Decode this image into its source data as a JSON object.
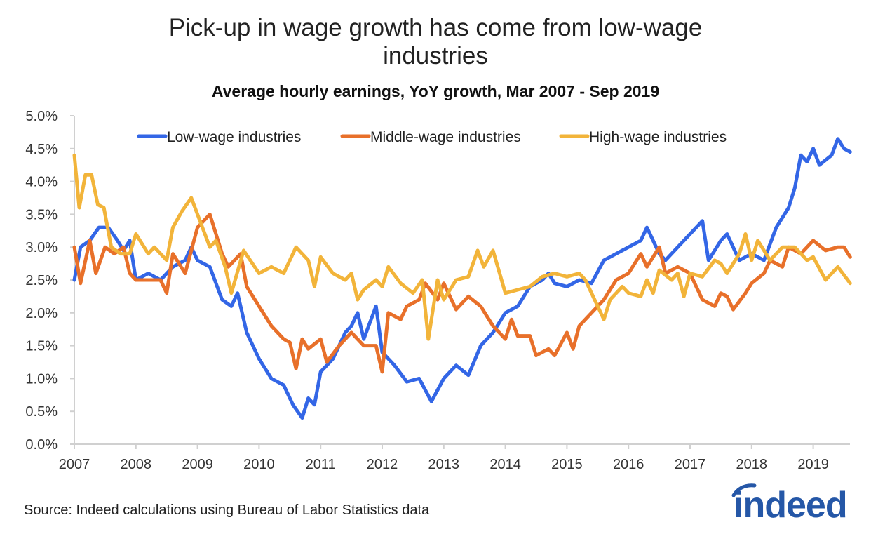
{
  "chart_data": {
    "type": "line",
    "title": "Pick-up in wage growth has come from low-wage industries",
    "title_lines": [
      "Pick-up in wage growth has come from low-wage",
      "industries"
    ],
    "subtitle": "Average hourly earnings, YoY growth, Mar 2007 - Sep 2019",
    "xlabel": "",
    "ylabel": "",
    "xlim": [
      2007,
      2019.67
    ],
    "ylim": [
      0,
      5
    ],
    "x_ticks": [
      "2007",
      "2008",
      "2009",
      "2010",
      "2011",
      "2012",
      "2013",
      "2014",
      "2015",
      "2016",
      "2017",
      "2018",
      "2019"
    ],
    "y_ticks": [
      "0.0%",
      "0.5%",
      "1.0%",
      "1.5%",
      "2.0%",
      "2.5%",
      "3.0%",
      "3.5%",
      "4.0%",
      "4.5%",
      "5.0%"
    ],
    "legend_placement": "top",
    "grid": false,
    "series": [
      {
        "name": "Low-wage industries",
        "color": "#3366e6",
        "x": [
          2007.0,
          2007.1,
          2007.25,
          2007.4,
          2007.55,
          2007.7,
          2007.8,
          2007.9,
          2008.0,
          2008.2,
          2008.4,
          2008.6,
          2008.8,
          2008.9,
          2009.0,
          2009.2,
          2009.4,
          2009.55,
          2009.65,
          2009.8,
          2010.0,
          2010.2,
          2010.4,
          2010.55,
          2010.7,
          2010.8,
          2010.9,
          2011.0,
          2011.2,
          2011.4,
          2011.5,
          2011.6,
          2011.7,
          2011.9,
          2012.0,
          2012.2,
          2012.4,
          2012.6,
          2012.8,
          2013.0,
          2013.2,
          2013.4,
          2013.6,
          2013.8,
          2014.0,
          2014.2,
          2014.4,
          2014.6,
          2014.7,
          2014.8,
          2015.0,
          2015.2,
          2015.4,
          2015.6,
          2015.8,
          2016.0,
          2016.2,
          2016.3,
          2016.5,
          2016.6,
          2016.8,
          2017.0,
          2017.2,
          2017.3,
          2017.5,
          2017.6,
          2017.8,
          2018.0,
          2018.2,
          2018.4,
          2018.6,
          2018.7,
          2018.8,
          2018.9,
          2019.0,
          2019.1,
          2019.3,
          2019.4,
          2019.5,
          2019.6
        ],
        "values": [
          2.5,
          3.0,
          3.1,
          3.3,
          3.3,
          3.1,
          2.95,
          3.1,
          2.5,
          2.6,
          2.5,
          2.7,
          2.8,
          3.0,
          2.8,
          2.7,
          2.2,
          2.1,
          2.3,
          1.7,
          1.3,
          1.0,
          0.9,
          0.6,
          0.4,
          0.7,
          0.6,
          1.1,
          1.3,
          1.7,
          1.8,
          2.0,
          1.6,
          2.1,
          1.4,
          1.2,
          0.95,
          1.0,
          0.65,
          1.0,
          1.2,
          1.05,
          1.5,
          1.7,
          2.0,
          2.1,
          2.4,
          2.5,
          2.6,
          2.45,
          2.4,
          2.5,
          2.45,
          2.8,
          2.9,
          3.0,
          3.1,
          3.3,
          2.9,
          2.8,
          3.0,
          3.2,
          3.4,
          2.8,
          3.1,
          3.2,
          2.8,
          2.9,
          2.8,
          3.3,
          3.6,
          3.9,
          4.4,
          4.3,
          4.5,
          4.25,
          4.4,
          4.65,
          4.5,
          4.45
        ]
      },
      {
        "name": "Middle-wage industries",
        "color": "#e8702a",
        "x": [
          2007.0,
          2007.1,
          2007.25,
          2007.35,
          2007.5,
          2007.65,
          2007.8,
          2007.9,
          2008.0,
          2008.2,
          2008.4,
          2008.5,
          2008.6,
          2008.8,
          2009.0,
          2009.1,
          2009.2,
          2009.4,
          2009.5,
          2009.7,
          2009.8,
          2010.0,
          2010.2,
          2010.4,
          2010.5,
          2010.6,
          2010.7,
          2010.8,
          2011.0,
          2011.1,
          2011.3,
          2011.5,
          2011.7,
          2011.9,
          2012.0,
          2012.1,
          2012.3,
          2012.4,
          2012.6,
          2012.7,
          2012.9,
          2013.0,
          2013.2,
          2013.4,
          2013.6,
          2013.8,
          2014.0,
          2014.1,
          2014.2,
          2014.4,
          2014.5,
          2014.7,
          2014.8,
          2015.0,
          2015.1,
          2015.2,
          2015.4,
          2015.6,
          2015.8,
          2016.0,
          2016.2,
          2016.3,
          2016.5,
          2016.6,
          2016.8,
          2017.0,
          2017.2,
          2017.4,
          2017.5,
          2017.6,
          2017.7,
          2017.9,
          2018.0,
          2018.2,
          2018.3,
          2018.5,
          2018.6,
          2018.8,
          2019.0,
          2019.2,
          2019.4,
          2019.5,
          2019.6
        ],
        "values": [
          3.0,
          2.45,
          3.1,
          2.6,
          3.0,
          2.9,
          3.0,
          2.6,
          2.5,
          2.5,
          2.5,
          2.3,
          2.9,
          2.6,
          3.3,
          3.4,
          3.5,
          2.9,
          2.7,
          2.9,
          2.4,
          2.1,
          1.8,
          1.6,
          1.55,
          1.15,
          1.6,
          1.45,
          1.6,
          1.25,
          1.5,
          1.7,
          1.5,
          1.5,
          1.1,
          2.0,
          1.9,
          2.1,
          2.2,
          2.45,
          2.2,
          2.45,
          2.05,
          2.25,
          2.1,
          1.8,
          1.6,
          1.9,
          1.65,
          1.65,
          1.35,
          1.45,
          1.35,
          1.7,
          1.45,
          1.8,
          2.0,
          2.2,
          2.5,
          2.6,
          2.9,
          2.7,
          3.0,
          2.6,
          2.7,
          2.6,
          2.2,
          2.1,
          2.3,
          2.25,
          2.05,
          2.3,
          2.45,
          2.6,
          2.8,
          2.7,
          3.0,
          2.9,
          3.1,
          2.95,
          3.0,
          3.0,
          2.85
        ]
      },
      {
        "name": "High-wage industries",
        "color": "#f2b43a",
        "x": [
          2007.0,
          2007.08,
          2007.18,
          2007.28,
          2007.38,
          2007.48,
          2007.6,
          2007.75,
          2007.9,
          2008.0,
          2008.2,
          2008.3,
          2008.5,
          2008.6,
          2008.75,
          2008.9,
          2009.1,
          2009.2,
          2009.3,
          2009.45,
          2009.55,
          2009.75,
          2010.0,
          2010.2,
          2010.4,
          2010.6,
          2010.8,
          2010.9,
          2011.0,
          2011.2,
          2011.4,
          2011.5,
          2011.6,
          2011.7,
          2011.9,
          2012.0,
          2012.1,
          2012.3,
          2012.5,
          2012.65,
          2012.75,
          2012.9,
          2013.0,
          2013.2,
          2013.4,
          2013.55,
          2013.65,
          2013.8,
          2014.0,
          2014.2,
          2014.4,
          2014.6,
          2014.8,
          2015.0,
          2015.2,
          2015.3,
          2015.4,
          2015.5,
          2015.6,
          2015.7,
          2015.9,
          2016.0,
          2016.2,
          2016.3,
          2016.4,
          2016.5,
          2016.7,
          2016.8,
          2016.9,
          2017.0,
          2017.2,
          2017.4,
          2017.5,
          2017.6,
          2017.8,
          2017.9,
          2018.0,
          2018.1,
          2018.3,
          2018.5,
          2018.7,
          2018.9,
          2019.0,
          2019.2,
          2019.4,
          2019.6
        ],
        "values": [
          4.4,
          3.6,
          4.1,
          4.1,
          3.65,
          3.6,
          3.0,
          2.9,
          2.9,
          3.2,
          2.9,
          3.0,
          2.8,
          3.3,
          3.55,
          3.75,
          3.25,
          3.0,
          3.1,
          2.7,
          2.3,
          2.95,
          2.6,
          2.7,
          2.6,
          3.0,
          2.8,
          2.4,
          2.85,
          2.6,
          2.5,
          2.6,
          2.2,
          2.35,
          2.5,
          2.4,
          2.7,
          2.45,
          2.3,
          2.5,
          1.6,
          2.5,
          2.2,
          2.5,
          2.55,
          2.95,
          2.7,
          2.95,
          2.3,
          2.35,
          2.4,
          2.55,
          2.6,
          2.55,
          2.6,
          2.5,
          2.3,
          2.1,
          1.9,
          2.2,
          2.4,
          2.3,
          2.25,
          2.5,
          2.3,
          2.65,
          2.5,
          2.6,
          2.25,
          2.6,
          2.55,
          2.8,
          2.75,
          2.6,
          2.9,
          3.2,
          2.8,
          3.1,
          2.8,
          3.0,
          3.0,
          2.8,
          2.85,
          2.5,
          2.7,
          2.45
        ]
      }
    ],
    "source": "Source: Indeed calculations using Bureau of Labor Statistics data",
    "logo_text": "indeed"
  }
}
